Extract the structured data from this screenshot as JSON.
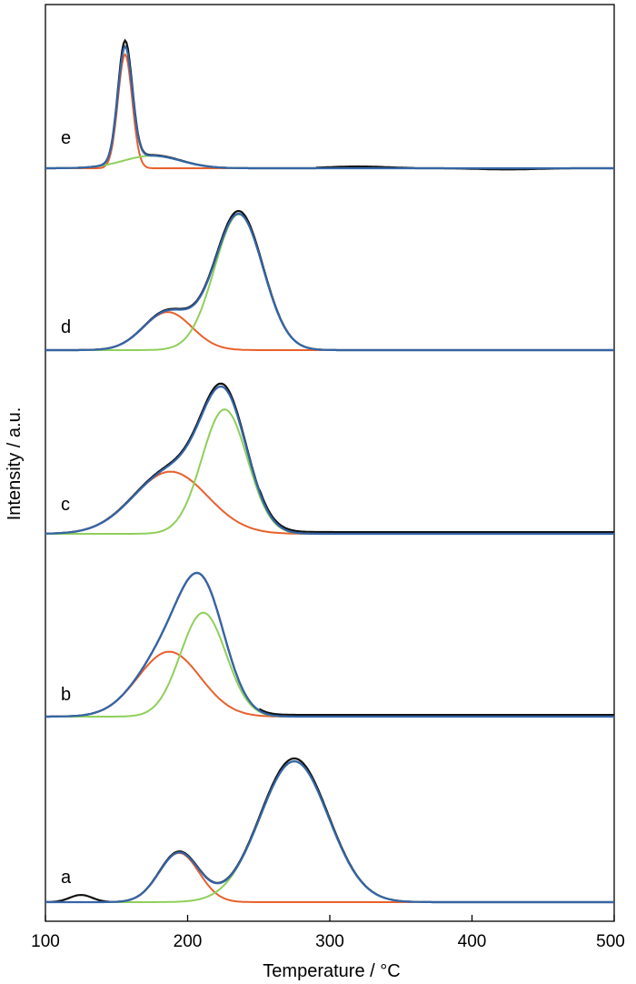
{
  "chart_data": {
    "type": "line",
    "title": "",
    "xlabel": "Temperature / °C",
    "ylabel": "Intensity / a.u.",
    "xlim": [
      100,
      500
    ],
    "xticks": [
      100,
      200,
      300,
      400,
      500
    ],
    "grid": false,
    "legend": "none",
    "colors": {
      "measured": "#111111",
      "fit_sum": "#3465a8",
      "peak_low": "#e8602c",
      "peak_high": "#8fcf5a"
    },
    "panels": [
      {
        "label": "e",
        "peaks": [
          {
            "center": 156,
            "height": 1.0,
            "width": 5,
            "color": "peak_low"
          },
          {
            "center": 175,
            "height": 0.11,
            "width": 20,
            "color": "peak_high"
          }
        ],
        "sum_peak": 1.03,
        "measured_peak": 1.08
      },
      {
        "label": "d",
        "peaks": [
          {
            "center": 186,
            "height": 0.28,
            "width": 17,
            "color": "peak_low"
          },
          {
            "center": 236,
            "height": 1.0,
            "width": 17,
            "color": "peak_high"
          }
        ],
        "sum_peak": 1.0,
        "measured_peak": 1.02
      },
      {
        "label": "c",
        "peaks": [
          {
            "center": 188,
            "height": 0.44,
            "width": 26,
            "color": "peak_low"
          },
          {
            "center": 226,
            "height": 0.88,
            "width": 16,
            "color": "peak_high"
          }
        ],
        "sum_peak": 1.0,
        "measured_peak": 1.02
      },
      {
        "label": "b",
        "peaks": [
          {
            "center": 187,
            "height": 0.45,
            "width": 22,
            "color": "peak_low"
          },
          {
            "center": 211,
            "height": 0.72,
            "width": 16,
            "color": "peak_high"
          }
        ],
        "sum_peak": 1.0,
        "measured_peak": 1.0
      },
      {
        "label": "a",
        "peaks": [
          {
            "center": 194,
            "height": 0.35,
            "width": 14,
            "color": "peak_low"
          },
          {
            "center": 275,
            "height": 1.0,
            "width": 24,
            "color": "peak_high"
          }
        ],
        "sum_peak": 0.98,
        "measured_peak": 1.0
      }
    ]
  }
}
